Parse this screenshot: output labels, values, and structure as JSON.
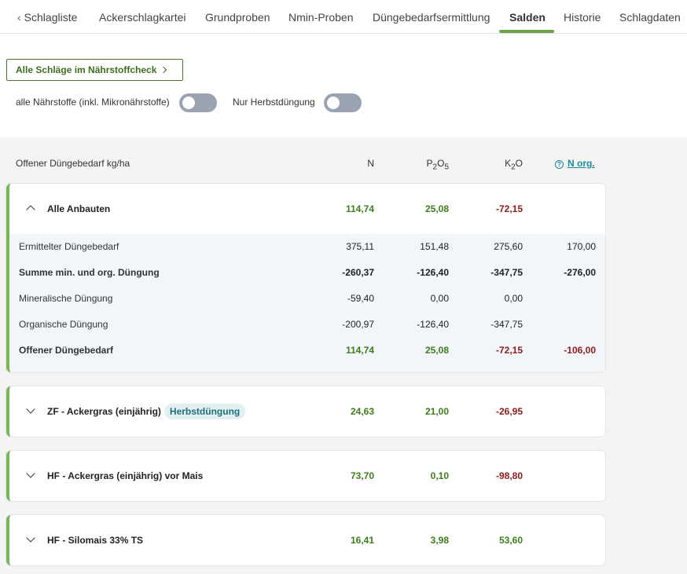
{
  "tabs": [
    {
      "label": "Schlagliste",
      "active": false
    },
    {
      "label": "Ackerschlagkartei",
      "active": false
    },
    {
      "label": "Grundproben",
      "active": false
    },
    {
      "label": "Nmin-Proben",
      "active": false
    },
    {
      "label": "Düngebedarfsermittlung",
      "active": false
    },
    {
      "label": "Salden",
      "active": true
    },
    {
      "label": "Historie",
      "active": false
    },
    {
      "label": "Schlagdaten",
      "active": false
    }
  ],
  "controls": {
    "all_fields_button": "Alle Schläge im Nährstoffcheck",
    "toggle_all_nutrients_label": "alle Nährstoffe (inkl. Mikronährstoffe)",
    "toggle_all_nutrients_on": false,
    "toggle_autumn_label": "Nur Herbstdüngung",
    "toggle_autumn_on": false
  },
  "table": {
    "header_label": "Offener Düngebedarf kg/ha",
    "col_n": "N",
    "col_p_base": "P",
    "col_p_sub1": "2",
    "col_p_base2": "O",
    "col_p_sub2": "5",
    "col_k_base": "K",
    "col_k_sub": "2",
    "col_k_base2": "O",
    "col_norg": "N org.",
    "help_icon": "?"
  },
  "cards": [
    {
      "title": "Alle Anbauten",
      "badge": "",
      "expanded": true,
      "n": "114,74",
      "p": "25,08",
      "k": "-72,15",
      "rows": [
        {
          "label": "Ermittelter Düngebedarf",
          "n": "375,11",
          "p": "151,48",
          "k": "275,60",
          "norg": "170,00"
        },
        {
          "label": "Summe min. und org. Düngung",
          "n": "-260,37",
          "p": "-126,40",
          "k": "-347,75",
          "norg": "-276,00"
        },
        {
          "label": "Mineralische Düngung",
          "n": "-59,40",
          "p": "0,00",
          "k": "0,00",
          "norg": ""
        },
        {
          "label": "Organische Düngung",
          "n": "-200,97",
          "p": "-126,40",
          "k": "-347,75",
          "norg": ""
        },
        {
          "label": "Offener Düngebedarf",
          "n": "114,74",
          "p": "25,08",
          "k": "-72,15",
          "norg": "-106,00"
        }
      ]
    },
    {
      "title": "ZF - Ackergras (einjährig)",
      "badge": "Herbstdüngung",
      "expanded": false,
      "n": "24,63",
      "p": "21,00",
      "k": "-26,95"
    },
    {
      "title": "HF - Ackergras (einjährig) vor Mais",
      "badge": "",
      "expanded": false,
      "n": "73,70",
      "p": "0,10",
      "k": "-98,80"
    },
    {
      "title": "HF - Silomais 33% TS",
      "badge": "",
      "expanded": false,
      "n": "16,41",
      "p": "3,98",
      "k": "53,60"
    }
  ],
  "colors": {
    "accent": "#6aa34a",
    "positive": "#3e7d1c",
    "negative": "#8e1b1b",
    "link": "#1e8aa0"
  }
}
